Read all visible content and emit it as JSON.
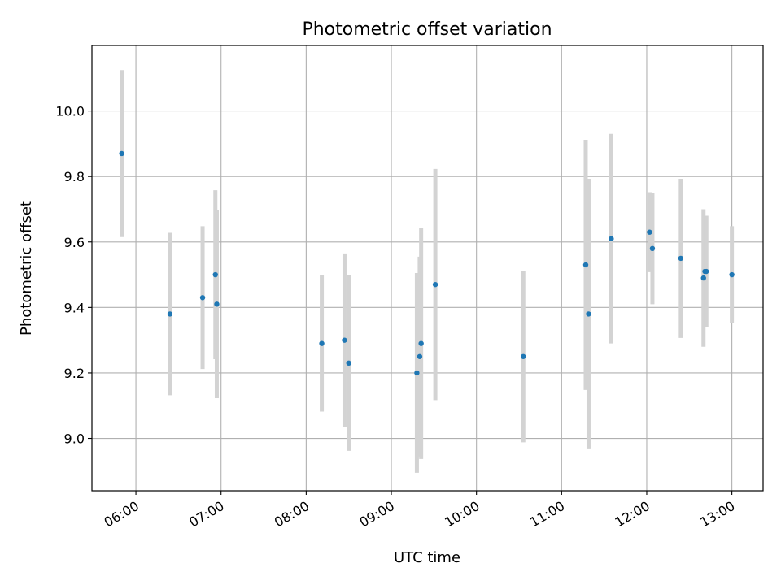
{
  "chart_data": {
    "type": "scatter",
    "title": "Photometric offset variation",
    "xlabel": "UTC time",
    "ylabel": "Photometric offset",
    "x_axis_type": "time",
    "date": "",
    "xlim": [
      "05:29",
      "13:22"
    ],
    "ylim": [
      8.84,
      10.2
    ],
    "xticks": [
      "06:00",
      "07:00",
      "08:00",
      "09:00",
      "10:00",
      "11:00",
      "12:00",
      "13:00"
    ],
    "yticks": [
      "9.0",
      "9.2",
      "9.4",
      "9.6",
      "9.8",
      "10.0"
    ],
    "grid": true,
    "marker_color": "#1f77b4",
    "errorbar_color": "#d3d3d3",
    "series": [
      {
        "points": [
          {
            "x": "05:50",
            "y": 9.87,
            "yerr": 0.255
          },
          {
            "x": "06:24",
            "y": 9.38,
            "yerr": 0.248
          },
          {
            "x": "06:47",
            "y": 9.43,
            "yerr": 0.218
          },
          {
            "x": "06:56",
            "y": 9.5,
            "yerr": 0.258
          },
          {
            "x": "06:57",
            "y": 9.41,
            "yerr": 0.287
          },
          {
            "x": "08:11",
            "y": 9.29,
            "yerr": 0.208
          },
          {
            "x": "08:27",
            "y": 9.3,
            "yerr": 0.265
          },
          {
            "x": "08:30",
            "y": 9.23,
            "yerr": 0.268
          },
          {
            "x": "09:18",
            "y": 9.2,
            "yerr": 0.305
          },
          {
            "x": "09:20",
            "y": 9.25,
            "yerr": 0.305
          },
          {
            "x": "09:21",
            "y": 9.29,
            "yerr": 0.353
          },
          {
            "x": "09:31",
            "y": 9.47,
            "yerr": 0.353
          },
          {
            "x": "10:33",
            "y": 9.25,
            "yerr": 0.262
          },
          {
            "x": "11:17",
            "y": 9.53,
            "yerr": 0.382
          },
          {
            "x": "11:19",
            "y": 9.38,
            "yerr": 0.413
          },
          {
            "x": "11:35",
            "y": 9.61,
            "yerr": 0.32
          },
          {
            "x": "12:02",
            "y": 9.63,
            "yerr": 0.122
          },
          {
            "x": "12:04",
            "y": 9.58,
            "yerr": 0.17
          },
          {
            "x": "12:24",
            "y": 9.55,
            "yerr": 0.243
          },
          {
            "x": "12:40",
            "y": 9.49,
            "yerr": 0.21
          },
          {
            "x": "12:41",
            "y": 9.51,
            "yerr": 0.17
          },
          {
            "x": "12:42",
            "y": 9.51,
            "yerr": 0.17
          },
          {
            "x": "13:00",
            "y": 9.5,
            "yerr": 0.148
          }
        ]
      }
    ]
  }
}
